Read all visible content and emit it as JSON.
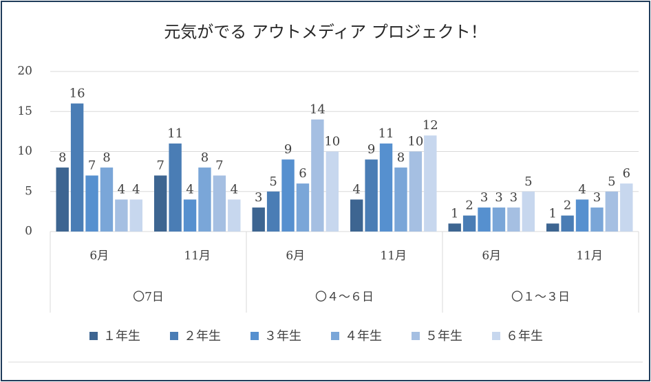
{
  "chart_data": {
    "type": "bar",
    "title": "元気がでる アウトメディア プロジェクト！",
    "categories": [
      "6月",
      "11月",
      "6月",
      "11月",
      "6月",
      "11月"
    ],
    "groups": [
      "〇7日",
      "〇４～６日",
      "〇１～３日"
    ],
    "series": [
      {
        "name": "１年生",
        "color": "#3d6591",
        "values": [
          8,
          7,
          3,
          4,
          1,
          1
        ]
      },
      {
        "name": "２年生",
        "color": "#4a7db5",
        "values": [
          16,
          11,
          5,
          9,
          2,
          2
        ]
      },
      {
        "name": "３年生",
        "color": "#5690cf",
        "values": [
          7,
          4,
          9,
          11,
          3,
          4
        ]
      },
      {
        "name": "４年生",
        "color": "#7aa6d8",
        "values": [
          8,
          8,
          6,
          8,
          3,
          3
        ]
      },
      {
        "name": "５年生",
        "color": "#a5bfe2",
        "values": [
          4,
          7,
          14,
          10,
          3,
          5
        ]
      },
      {
        "name": "６年生",
        "color": "#c7d7ee",
        "values": [
          4,
          4,
          10,
          12,
          5,
          6
        ]
      }
    ],
    "ylim": [
      0,
      20
    ],
    "yticks": [
      0,
      5,
      10,
      15,
      20
    ],
    "grid": true,
    "legend": "bottom"
  }
}
